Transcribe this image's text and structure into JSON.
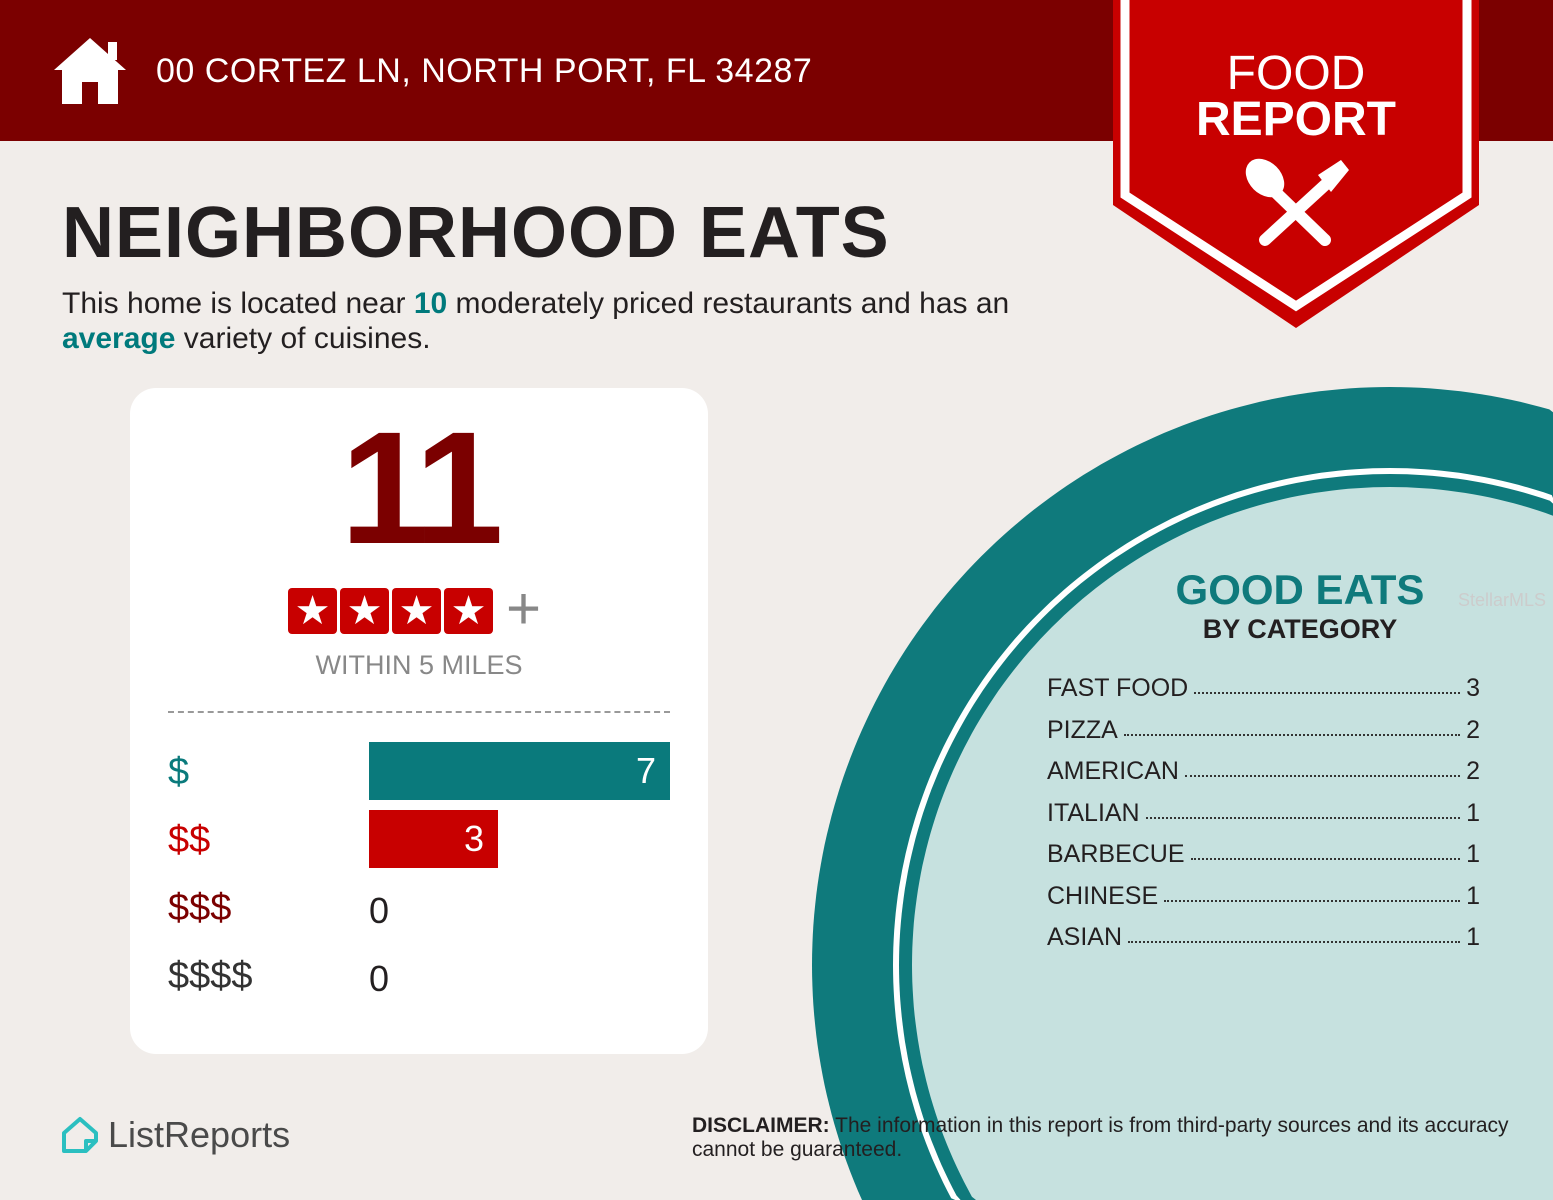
{
  "header": {
    "address": "00 CORTEZ LN, NORTH PORT, FL 34287",
    "badge_line1": "FOOD",
    "badge_line2": "REPORT"
  },
  "title": "NEIGHBORHOOD EATS",
  "description": {
    "p1": "This home is located near ",
    "count": "10",
    "p2": " moderately priced restaurants and has an ",
    "variety": "average",
    "p3": " variety of cuisines."
  },
  "summary": {
    "total": "11",
    "rating_stars": 4,
    "rating_plus": "+",
    "within": "WITHIN 5 MILES"
  },
  "price_levels": [
    {
      "label": "$",
      "value": 7,
      "color": "#0a7a7c"
    },
    {
      "label": "$$",
      "value": 3,
      "color": "#c80000"
    },
    {
      "label": "$$$",
      "value": 0,
      "color": "#7b0000"
    },
    {
      "label": "$$$$",
      "value": 0,
      "color": "#333333"
    }
  ],
  "categories": {
    "title": "GOOD EATS",
    "subtitle": "BY CATEGORY",
    "items": [
      {
        "name": "FAST FOOD",
        "count": "3"
      },
      {
        "name": "PIZZA",
        "count": "2"
      },
      {
        "name": "AMERICAN",
        "count": "2"
      },
      {
        "name": "ITALIAN",
        "count": "1"
      },
      {
        "name": "BARBECUE",
        "count": "1"
      },
      {
        "name": "CHINESE",
        "count": "1"
      },
      {
        "name": "ASIAN",
        "count": "1"
      }
    ]
  },
  "watermark": "StellarMLS",
  "footer": {
    "logo": "ListReports",
    "disclaimer_label": "DISCLAIMER:",
    "disclaimer": " The information in this report is from third-party sources and its accuracy cannot be guaranteed."
  },
  "colors": {
    "dark_red": "#7b0000",
    "red": "#c80000",
    "teal": "#0f7a7c",
    "light_teal": "#c6e1df"
  }
}
